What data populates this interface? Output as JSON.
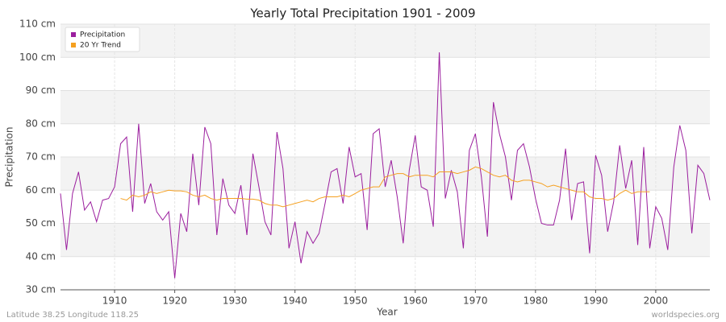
{
  "chart_data": {
    "type": "line",
    "title": "Yearly Total Precipitation 1901 - 2009",
    "x_label": "Year",
    "y_label": "Precipitation",
    "footer_left": "Latitude 38.25 Longitude 118.25",
    "footer_right": "worldspecies.org",
    "legend": "top-left",
    "grid": true,
    "x": [
      1901,
      1902,
      1903,
      1904,
      1905,
      1906,
      1907,
      1908,
      1909,
      1910,
      1911,
      1912,
      1913,
      1914,
      1915,
      1916,
      1917,
      1918,
      1919,
      1920,
      1921,
      1922,
      1923,
      1924,
      1925,
      1926,
      1927,
      1928,
      1929,
      1930,
      1931,
      1932,
      1933,
      1934,
      1935,
      1936,
      1937,
      1938,
      1939,
      1940,
      1941,
      1942,
      1943,
      1944,
      1945,
      1946,
      1947,
      1948,
      1949,
      1950,
      1951,
      1952,
      1953,
      1954,
      1955,
      1956,
      1957,
      1958,
      1959,
      1960,
      1961,
      1962,
      1963,
      1964,
      1965,
      1966,
      1967,
      1968,
      1969,
      1970,
      1971,
      1972,
      1973,
      1974,
      1975,
      1976,
      1977,
      1978,
      1979,
      1980,
      1981,
      1982,
      1983,
      1984,
      1985,
      1986,
      1987,
      1988,
      1989,
      1990,
      1991,
      1992,
      1993,
      1994,
      1995,
      1996,
      1997,
      1998,
      1999,
      2000,
      2001,
      2002,
      2003,
      2004,
      2005,
      2006,
      2007,
      2008,
      2009
    ],
    "series": [
      {
        "name": "Precipitation",
        "color": "#9b1f9e",
        "values": [
          59,
          42,
          59,
          65.5,
          54,
          56.5,
          50.5,
          57,
          57.5,
          61,
          74,
          76,
          53.5,
          80,
          56,
          62,
          53.5,
          51,
          53.5,
          33.5,
          53,
          47.5,
          71,
          55.5,
          79,
          74,
          46.5,
          63.5,
          55.5,
          53,
          61.5,
          46.5,
          71,
          61,
          50.5,
          46.5,
          77.5,
          66.5,
          42.5,
          50.5,
          38,
          47.5,
          44,
          47,
          56,
          65.5,
          66.5,
          56,
          73,
          64,
          65,
          48,
          77,
          78.5,
          61,
          69,
          58,
          44,
          66,
          76.5,
          61,
          60,
          49,
          101.5,
          57.5,
          66,
          59.5,
          42.5,
          72,
          77,
          64,
          46,
          86.5,
          77,
          70,
          57,
          72,
          74,
          67,
          57.5,
          50,
          49.5,
          49.5,
          57,
          72.5,
          51,
          62,
          62.5,
          41,
          70.5,
          64.5,
          47.5,
          56.5,
          73.5,
          60.5,
          69,
          43.5,
          73,
          42.5,
          55,
          51.5,
          42,
          67,
          79.5,
          72,
          47,
          67.5,
          65,
          57
        ]
      },
      {
        "name": "20 Yr Trend",
        "color": "#f5a020",
        "values": [
          null,
          null,
          null,
          null,
          null,
          null,
          null,
          null,
          null,
          null,
          57.5,
          57,
          58.5,
          58,
          58.5,
          59.5,
          59,
          59.5,
          60,
          59.8,
          59.8,
          59.5,
          58.5,
          58,
          58.5,
          57.5,
          57,
          57.5,
          57.5,
          57.5,
          57.5,
          57.3,
          57.3,
          57,
          56,
          55.5,
          55.5,
          55,
          55.5,
          56,
          56.5,
          57,
          56.5,
          57.5,
          58,
          58,
          58,
          58.5,
          58,
          59,
          60,
          60.5,
          61,
          61,
          64,
          64.5,
          65,
          65,
          64,
          64.5,
          64.5,
          64.5,
          64,
          65.5,
          65.5,
          65.5,
          65,
          65.5,
          66,
          67,
          66.5,
          65.5,
          64.5,
          64,
          64.5,
          63,
          62.5,
          63,
          63,
          62.5,
          62,
          61,
          61.5,
          61,
          60.5,
          60,
          59.5,
          59.5,
          58,
          57.5,
          57.5,
          57,
          57.5,
          59,
          60,
          59,
          59.5,
          59.5,
          59.5,
          null,
          null,
          null,
          null,
          null,
          null,
          null,
          null,
          null,
          null
        ]
      }
    ],
    "xlim": [
      1901,
      2009
    ],
    "xticks": [
      1910,
      1920,
      1930,
      1940,
      1950,
      1960,
      1970,
      1980,
      1990,
      2000
    ],
    "ylim": [
      30,
      110
    ],
    "yticks": [
      {
        "value": 30,
        "label": "30 cm"
      },
      {
        "value": 40,
        "label": "40 cm"
      },
      {
        "value": 50,
        "label": "50 cm"
      },
      {
        "value": 60,
        "label": "60 cm"
      },
      {
        "value": 70,
        "label": "70 cm"
      },
      {
        "value": 80,
        "label": "80 cm"
      },
      {
        "value": 90,
        "label": "90 cm"
      },
      {
        "value": 100,
        "label": "100 cm"
      },
      {
        "value": 110,
        "label": "110 cm"
      }
    ]
  }
}
